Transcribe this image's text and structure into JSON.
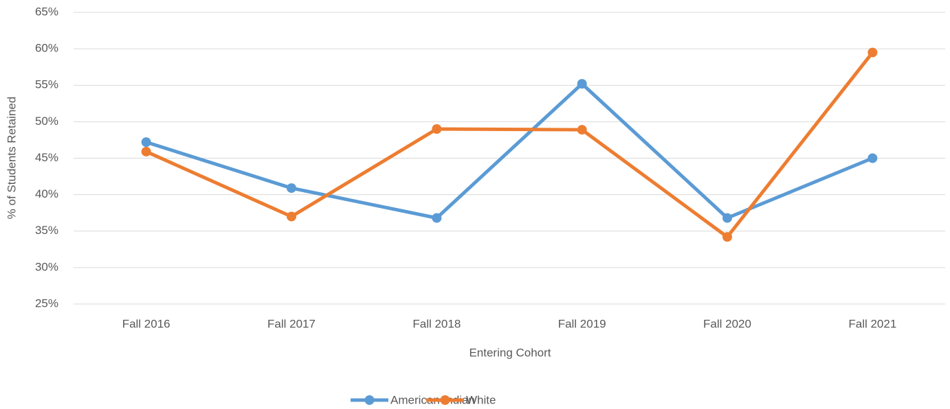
{
  "chart_data": {
    "type": "line",
    "x_label": "Entering Cohort",
    "y_label": "% of Students Retained",
    "categories": [
      "Fall 2016",
      "Fall 2017",
      "Fall 2018",
      "Fall 2019",
      "Fall 2020",
      "Fall 2021"
    ],
    "series": [
      {
        "name": "American Indian",
        "color": "#5b9bd5",
        "values": [
          47.2,
          40.9,
          36.8,
          55.2,
          36.8,
          45.0
        ]
      },
      {
        "name": "White",
        "color": "#ed7d31",
        "values": [
          45.9,
          37.0,
          49.0,
          48.9,
          34.2,
          59.5
        ]
      }
    ],
    "ylim": [
      25,
      65
    ],
    "yticks": [
      {
        "value": 25,
        "label": "25%"
      },
      {
        "value": 30,
        "label": "30%"
      },
      {
        "value": 35,
        "label": "35%"
      },
      {
        "value": 40,
        "label": "40%"
      },
      {
        "value": 45,
        "label": "45%"
      },
      {
        "value": 50,
        "label": "50%"
      },
      {
        "value": 55,
        "label": "55%"
      },
      {
        "value": 60,
        "label": "60%"
      },
      {
        "value": 65,
        "label": "65%"
      }
    ],
    "grid": true,
    "legend": "bottom"
  }
}
